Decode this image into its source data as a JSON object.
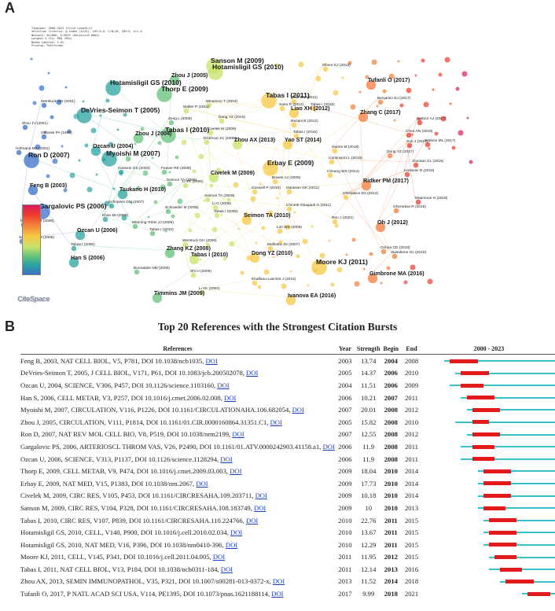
{
  "panel_a": {
    "letter": "A",
    "stats_lines": [
      "Timespan: 2000-2023 (Slice Length=1)",
      "Selection Criteria: g-index (k=25), LRF=3.0, L/N=10, LBY=5, e=1.0",
      "Network: N=1066, E=3649 (Density=0.0064)",
      "Largest 5 CCs: 968 (90%)",
      "Nodes Labeled: 1.0%",
      "Pruning: Pathfinder"
    ],
    "logo_text": "CiteSpace",
    "nodes": [
      {
        "label": "Sanson M (2009)",
        "size": "big"
      },
      {
        "label": "Hotamisligil GS (2010)",
        "size": "big"
      },
      {
        "label": "Moore KJ (2013)",
        "size": "small"
      },
      {
        "label": "Tufanli O (2017)",
        "size": "mid"
      },
      {
        "label": "Hotamisligil GS (2010)",
        "size": "big"
      },
      {
        "label": "Zhou J (2005)",
        "size": "mid"
      },
      {
        "label": "Thorp E (2009)",
        "size": "big"
      },
      {
        "label": "Tabas I (2011)",
        "size": "big"
      },
      {
        "label": "Scull CM (2011)",
        "size": "small"
      },
      {
        "label": "Tabas I (2015)",
        "size": "small"
      },
      {
        "label": "Minamino T (2004)",
        "size": "small"
      },
      {
        "label": "Sano R (2012)",
        "size": "small"
      },
      {
        "label": "Benjamin EJ (2017)",
        "size": "small"
      },
      {
        "label": "Werstuck GH (2001)",
        "size": "small"
      },
      {
        "label": "DeVries-Seimon T (2005)",
        "size": "big"
      },
      {
        "label": "Walter P (2011)",
        "size": "small"
      },
      {
        "label": "Liao XH (2012)",
        "size": "mid"
      },
      {
        "label": "Zhang C (2017)",
        "size": "mid"
      },
      {
        "label": "Kattoor AJ (2017)",
        "size": "small"
      },
      {
        "label": "Zeng L (2009)",
        "size": "small"
      },
      {
        "label": "Razani B (2012)",
        "size": "small"
      },
      {
        "label": "Zhou TJ (2001)",
        "size": "small"
      },
      {
        "label": "Gulinesi PA (1999)",
        "size": "small"
      },
      {
        "label": "Tabas I (2010)",
        "size": "big"
      },
      {
        "label": "Dong YZ (2010)",
        "size": "small"
      },
      {
        "label": "Tabas I (2016)",
        "size": "small"
      },
      {
        "label": "Chen AN (2019)",
        "size": "small"
      },
      {
        "label": "Battson ML (2017)",
        "size": "small"
      },
      {
        "label": "Civelek M (2009)",
        "size": "small"
      },
      {
        "label": "Zhou J (2004)",
        "size": "mid"
      },
      {
        "label": "Dickhout JG (2005)",
        "size": "small"
      },
      {
        "label": "Sun J (2017)",
        "size": "small"
      },
      {
        "label": "Hofmann MA (2001)",
        "size": "small"
      },
      {
        "label": "Ozcan U (2004)",
        "size": "mid"
      },
      {
        "label": "Zhou AX (2013)",
        "size": "mid"
      },
      {
        "label": "Yao ST (2014)",
        "size": "mid"
      },
      {
        "label": "Gaires M (2018)",
        "size": "small"
      },
      {
        "label": "Dong YZ (2017)",
        "size": "small"
      },
      {
        "label": "Ron D (2007)",
        "size": "big"
      },
      {
        "label": "Myoishi M (2007)",
        "size": "big"
      },
      {
        "label": "Erbay E (2009)",
        "size": "big"
      },
      {
        "label": "Cominacini L (2015)",
        "size": "small"
      },
      {
        "label": "Dumani GL (2015)",
        "size": "small"
      },
      {
        "label": "Hossein GS (2003)",
        "size": "small"
      },
      {
        "label": "Feaver RE (2008)",
        "size": "small"
      },
      {
        "label": "Li YK (2005)",
        "size": "small"
      },
      {
        "label": "Hosseini R (2018)",
        "size": "small"
      },
      {
        "label": "Feng B (2003)",
        "size": "mid"
      },
      {
        "label": "Seimon TA (2006)",
        "size": "small"
      },
      {
        "label": "Civelek M (2009)",
        "size": "mid"
      },
      {
        "label": "Bowes AJ (2009)",
        "size": "small"
      },
      {
        "label": "Cheang WS (2014)",
        "size": "small"
      },
      {
        "label": "Ridker PM (2017)",
        "size": "mid"
      },
      {
        "label": "Tsukano H (2010)",
        "size": "mid"
      },
      {
        "label": "Duewell P (2010)",
        "size": "small"
      },
      {
        "label": "Hansson GK (2011)",
        "size": "small"
      },
      {
        "label": "Chistiakov DA (2014)",
        "size": "small"
      },
      {
        "label": "Maamoun H (2019)",
        "size": "small"
      },
      {
        "label": "Seimon TA (2009)",
        "size": "small"
      },
      {
        "label": "Li G (2009)",
        "size": "small"
      },
      {
        "label": "Chinetti-Gbaguidi G (2011)",
        "size": "small"
      },
      {
        "label": "Schrijvers DM (2007)",
        "size": "small"
      },
      {
        "label": "Schroeder M (2005)",
        "size": "small"
      },
      {
        "label": "Tabas I (2009)",
        "size": "small"
      },
      {
        "label": "Ghemrawi R (2018)",
        "size": "small"
      },
      {
        "label": "Gargalovic PS (2006)",
        "size": "big"
      },
      {
        "label": "Khan MI (2009)",
        "size": "small"
      },
      {
        "label": "Seimon TA (2010)",
        "size": "mid"
      },
      {
        "label": "Ren J (2021)",
        "size": "small"
      },
      {
        "label": "Oh J (2012)",
        "size": "mid"
      },
      {
        "label": "Marciniak SJ (2006)",
        "size": "small"
      },
      {
        "label": "Manning-Tobin JJ (2009)",
        "size": "small"
      },
      {
        "label": "Lim WS (2008)",
        "size": "small"
      },
      {
        "label": "Ozcan U (2006)",
        "size": "mid"
      },
      {
        "label": "Tabas I (2010)",
        "size": "small"
      },
      {
        "label": "Schrijvers DM (2005)",
        "size": "small"
      },
      {
        "label": "Tabas I (2005)",
        "size": "small"
      },
      {
        "label": "Werstuck GH (2006)",
        "size": "small"
      },
      {
        "label": "Malhotra JD (2007)",
        "size": "small"
      },
      {
        "label": "Ochoa CD (2018)",
        "size": "small"
      },
      {
        "label": "Zhang KZ (2008)",
        "size": "mid"
      },
      {
        "label": "Han S (2006)",
        "size": "mid"
      },
      {
        "label": "Tabas I (2010)",
        "size": "mid"
      },
      {
        "label": "Dong YZ (2010)",
        "size": "mid"
      },
      {
        "label": "Basaleme GL (2019)",
        "size": "small"
      },
      {
        "label": "Moore KJ (2011)",
        "size": "big"
      },
      {
        "label": "Borradaile NM (2006)",
        "size": "small"
      },
      {
        "label": "Shi H (2009)",
        "size": "small"
      },
      {
        "label": "Gimbrone MA (2016)",
        "size": "mid"
      },
      {
        "label": "Khalfaou-Laschet J (2016)",
        "size": "small"
      },
      {
        "label": "Timmins JM (2009)",
        "size": "mid"
      },
      {
        "label": "Li YK (2004)",
        "size": "small"
      },
      {
        "label": "Ivanova EA (2016)",
        "size": "mid"
      }
    ]
  },
  "panel_b": {
    "letter": "B",
    "title": "Top 20 References with the Strongest Citation Bursts",
    "columns": {
      "references": "References",
      "year": "Year",
      "strength": "Strength",
      "begin": "Begin",
      "end": "End",
      "timeline": "2000 - 2023"
    },
    "doi_label": "DOI",
    "range_start": 2000,
    "range_end": 2023,
    "rows": [
      {
        "ref": "Feng B, 2003, NAT CELL BIOL, V5, P781, DOI 10.1038/ncb1035,",
        "year": "2003",
        "strength": "13.74",
        "begin": "2004",
        "end": "2008",
        "begin_num": 2004,
        "end_num": 2008,
        "year_num": 2003
      },
      {
        "ref": "DeVries-Seimon T, 2005, J CELL BIOL, V171, P61, DOI 10.1083/jcb.200502078,",
        "year": "2005",
        "strength": "14.37",
        "begin": "2006",
        "end": "2010",
        "begin_num": 2006,
        "end_num": 2010,
        "year_num": 2005
      },
      {
        "ref": "Ozcan U, 2004, SCIENCE, V306, P457, DOI 10.1126/science.1103160,",
        "year": "2004",
        "strength": "11.51",
        "begin": "2006",
        "end": "2009",
        "begin_num": 2006,
        "end_num": 2009,
        "year_num": 2004
      },
      {
        "ref": "Han S, 2006, CELL METAB, V3, P257, DOI 10.1016/j.cmet.2006.02.008,",
        "year": "2006",
        "strength": "10.21",
        "begin": "2007",
        "end": "2011",
        "begin_num": 2007,
        "end_num": 2011,
        "year_num": 2006
      },
      {
        "ref": "Myoishi M, 2007, CIRCULATION, V116, P1226, DOI 10.1161/CIRCULATIONAHA.106.682054,",
        "year": "2007",
        "strength": "20.01",
        "begin": "2008",
        "end": "2012",
        "begin_num": 2008,
        "end_num": 2012,
        "year_num": 2007
      },
      {
        "ref": "Zhou J, 2005, CIRCULATION, V111, P1814, DOI 10.1161/01.CIR.0000160864.31351.C1,",
        "year": "2005",
        "strength": "15.82",
        "begin": "2008",
        "end": "2010",
        "begin_num": 2008,
        "end_num": 2010,
        "year_num": 2005
      },
      {
        "ref": "Ron D, 2007, NAT REV MOL CELL BIO, V8, P519, DOI 10.1038/nrm2199,",
        "year": "2007",
        "strength": "12.55",
        "begin": "2008",
        "end": "2012",
        "begin_num": 2008,
        "end_num": 2012,
        "year_num": 2007
      },
      {
        "ref": "Gargalovic PS, 2006, ARTERIOSCL THROM VAS, V26, P2490, DOI 10.1161/01.ATV.0000242903.41158.a1,",
        "year": "2006",
        "strength": "11.9",
        "begin": "2008",
        "end": "2011",
        "begin_num": 2008,
        "end_num": 2011,
        "year_num": 2006
      },
      {
        "ref": "Ozcan U, 2006, SCIENCE, V313, P1137, DOI 10.1126/science.1128294,",
        "year": "2006",
        "strength": "11.9",
        "begin": "2008",
        "end": "2011",
        "begin_num": 2008,
        "end_num": 2011,
        "year_num": 2006
      },
      {
        "ref": "Thorp E, 2009, CELL METAB, V9, P474, DOI 10.1016/j.cmet.2009.03.003,",
        "year": "2009",
        "strength": "18.04",
        "begin": "2010",
        "end": "2014",
        "begin_num": 2010,
        "end_num": 2014,
        "year_num": 2009
      },
      {
        "ref": "Erbay E, 2009, NAT MED, V15, P1383, DOI 10.1038/nm.2067,",
        "year": "2009",
        "strength": "17.73",
        "begin": "2010",
        "end": "2014",
        "begin_num": 2010,
        "end_num": 2014,
        "year_num": 2009
      },
      {
        "ref": "Civelek M, 2009, CIRC RES, V105, P453, DOI 10.1161/CIRCRESAHA.109.203711,",
        "year": "2009",
        "strength": "10.18",
        "begin": "2010",
        "end": "2014",
        "begin_num": 2010,
        "end_num": 2014,
        "year_num": 2009
      },
      {
        "ref": "Sanson M, 2009, CIRC RES, V104, P328, DOI 10.1161/CIRCRESAHA.108.183749,",
        "year": "2009",
        "strength": "10",
        "begin": "2010",
        "end": "2013",
        "begin_num": 2010,
        "end_num": 2013,
        "year_num": 2009
      },
      {
        "ref": "Tabas I, 2010, CIRC RES, V107, P839, DOI 10.1161/CIRCRESAHA.110.224766,",
        "year": "2010",
        "strength": "22.76",
        "begin": "2011",
        "end": "2015",
        "begin_num": 2011,
        "end_num": 2015,
        "year_num": 2010
      },
      {
        "ref": "Hotamisligil GS, 2010, CELL, V140, P900, DOI 10.1016/j.cell.2010.02.034,",
        "year": "2010",
        "strength": "13.67",
        "begin": "2011",
        "end": "2015",
        "begin_num": 2011,
        "end_num": 2015,
        "year_num": 2010
      },
      {
        "ref": "Hotamisligil GS, 2010, NAT MED, V16, P396, DOI 10.1038/nm0410-396,",
        "year": "2010",
        "strength": "12.29",
        "begin": "2011",
        "end": "2015",
        "begin_num": 2011,
        "end_num": 2015,
        "year_num": 2010
      },
      {
        "ref": "Moore KJ, 2011, CELL, V145, P341, DOI 10.1016/j.cell.2011.04.005,",
        "year": "2011",
        "strength": "11.95",
        "begin": "2012",
        "end": "2015",
        "begin_num": 2012,
        "end_num": 2015,
        "year_num": 2011
      },
      {
        "ref": "Tabas I, 2011, NAT CELL BIOL, V13, P184, DOI 10.1038/ncb0311-184,",
        "year": "2011",
        "strength": "12.14",
        "begin": "2013",
        "end": "2016",
        "begin_num": 2013,
        "end_num": 2016,
        "year_num": 2011
      },
      {
        "ref": "Zhou AX, 2013, SEMIN IMMUNOPATHOL, V35, P321, DOI 10.1007/s00281-013-0372-x,",
        "year": "2013",
        "strength": "11.52",
        "begin": "2014",
        "end": "2018",
        "begin_num": 2014,
        "end_num": 2018,
        "year_num": 2013
      },
      {
        "ref": "Tufanli O, 2017, P NATL ACAD SCI USA, V114, PE1395, DOI 10.1073/pnas.1621188114,",
        "year": "2017",
        "strength": "9.99",
        "begin": "2018",
        "end": "2021",
        "begin_num": 2018,
        "end_num": 2021,
        "year_num": 2017
      }
    ]
  }
}
